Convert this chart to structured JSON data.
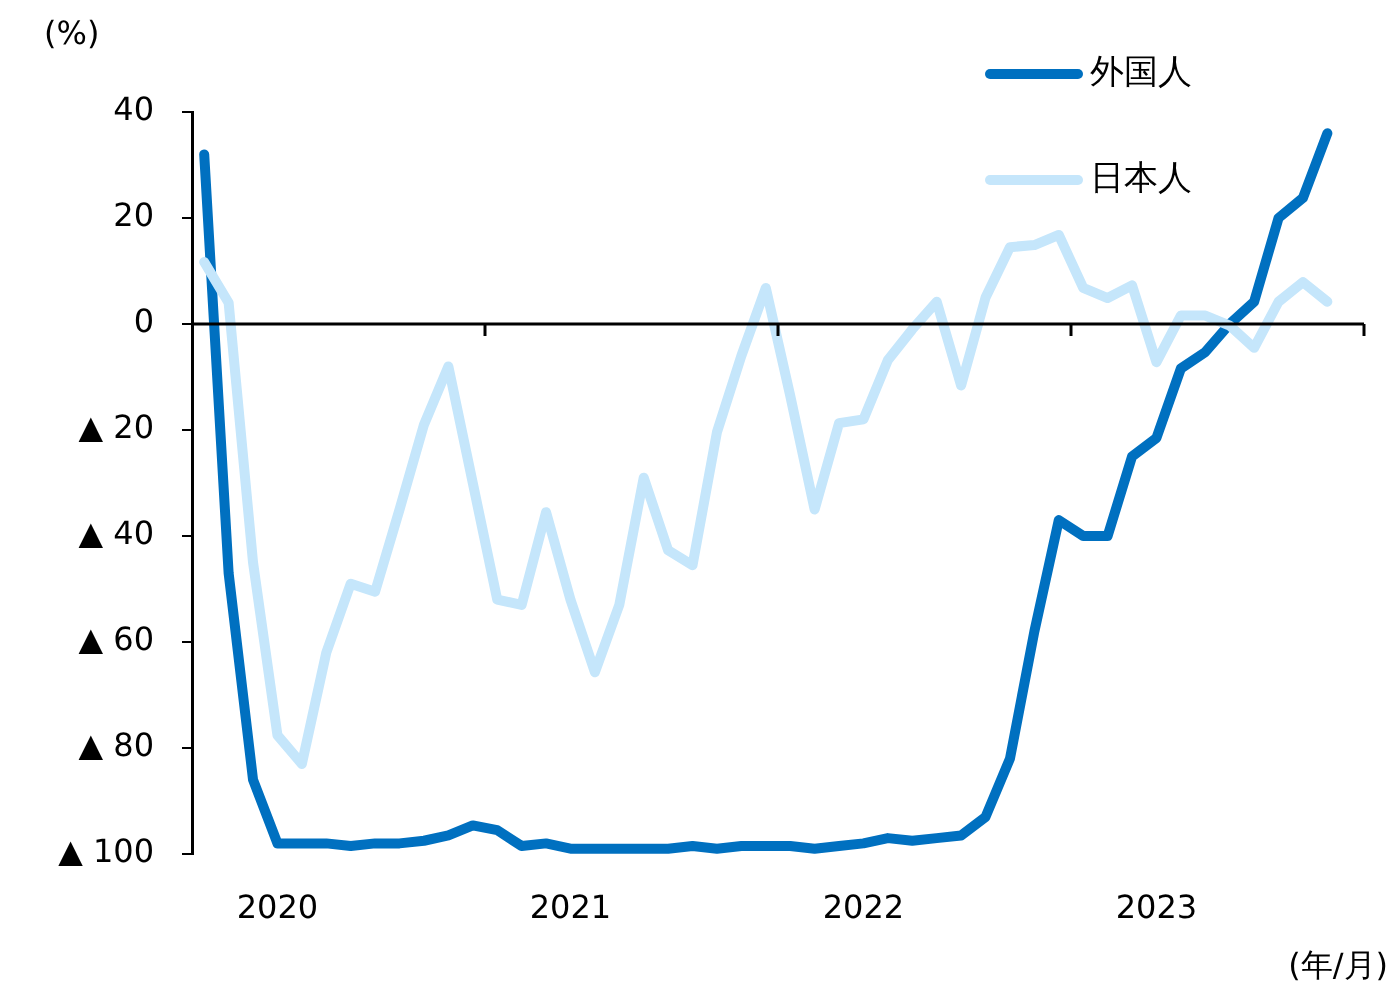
{
  "chart_data": {
    "type": "line",
    "ylabel": "(%)",
    "xlabel": "(年/月)",
    "categories": [
      null,
      null,
      null,
      "2020",
      null,
      null,
      null,
      null,
      null,
      null,
      null,
      null,
      null,
      null,
      null,
      "2021",
      null,
      null,
      null,
      null,
      null,
      null,
      null,
      null,
      null,
      null,
      null,
      "2022",
      null,
      null,
      null,
      null,
      null,
      null,
      null,
      null,
      null,
      null,
      null,
      "2023",
      null,
      null,
      null,
      null,
      null,
      null,
      null,
      null
    ],
    "series": [
      {
        "name": "外国人",
        "color": "#0070c0",
        "values": [
          32,
          -47,
          -86,
          -98,
          -98,
          -98,
          -98.5,
          -98,
          -98,
          -97.5,
          -96.5,
          -94.6,
          -95.5,
          -98.5,
          -98,
          -99,
          -99,
          -99,
          -99,
          -99,
          -98.5,
          -99,
          -98.5,
          -98.5,
          -98.5,
          -99,
          -98.5,
          -98,
          -97,
          -97.5,
          -97,
          -96.5,
          -93,
          -82,
          -58,
          -37,
          -40,
          -40,
          -25,
          -21.5,
          -8.4,
          -5.3,
          0,
          4.2,
          20,
          23.8,
          36,
          null
        ]
      },
      {
        "name": "日本人",
        "color": "#c5e6fb",
        "values": [
          11.7,
          4,
          -45,
          -77.6,
          -83,
          -62,
          -49,
          -50.5,
          -35,
          -19,
          -8,
          -30,
          -52,
          -53,
          -35.5,
          -52,
          -65.7,
          -53,
          -29,
          -42.7,
          -45.5,
          -20.4,
          -6,
          6.8,
          -13.5,
          -35,
          -18.7,
          -18,
          -6.8,
          -1,
          4.2,
          -11.6,
          5,
          14.5,
          14.9,
          16.8,
          6.8,
          4.9,
          7.3,
          -7.2,
          1.6,
          1.6,
          -0.3,
          -4.5,
          4.2,
          7.9,
          4.2,
          null
        ]
      }
    ],
    "ylim": [
      -100,
      40
    ],
    "yticks": [
      40,
      20,
      0,
      {
        "value": -20,
        "label": "▲ 20"
      },
      {
        "value": -40,
        "label": "▲ 40"
      },
      {
        "value": -60,
        "label": "▲ 60"
      },
      {
        "value": -80,
        "label": "▲ 80"
      },
      {
        "value": -100,
        "label": "▲ 100"
      }
    ],
    "ref_lines": [
      {
        "axis": "y",
        "value": 0,
        "color": "#000000"
      }
    ],
    "legend": "top right",
    "grid": false,
    "marker": "none",
    "line_style": "solid"
  }
}
